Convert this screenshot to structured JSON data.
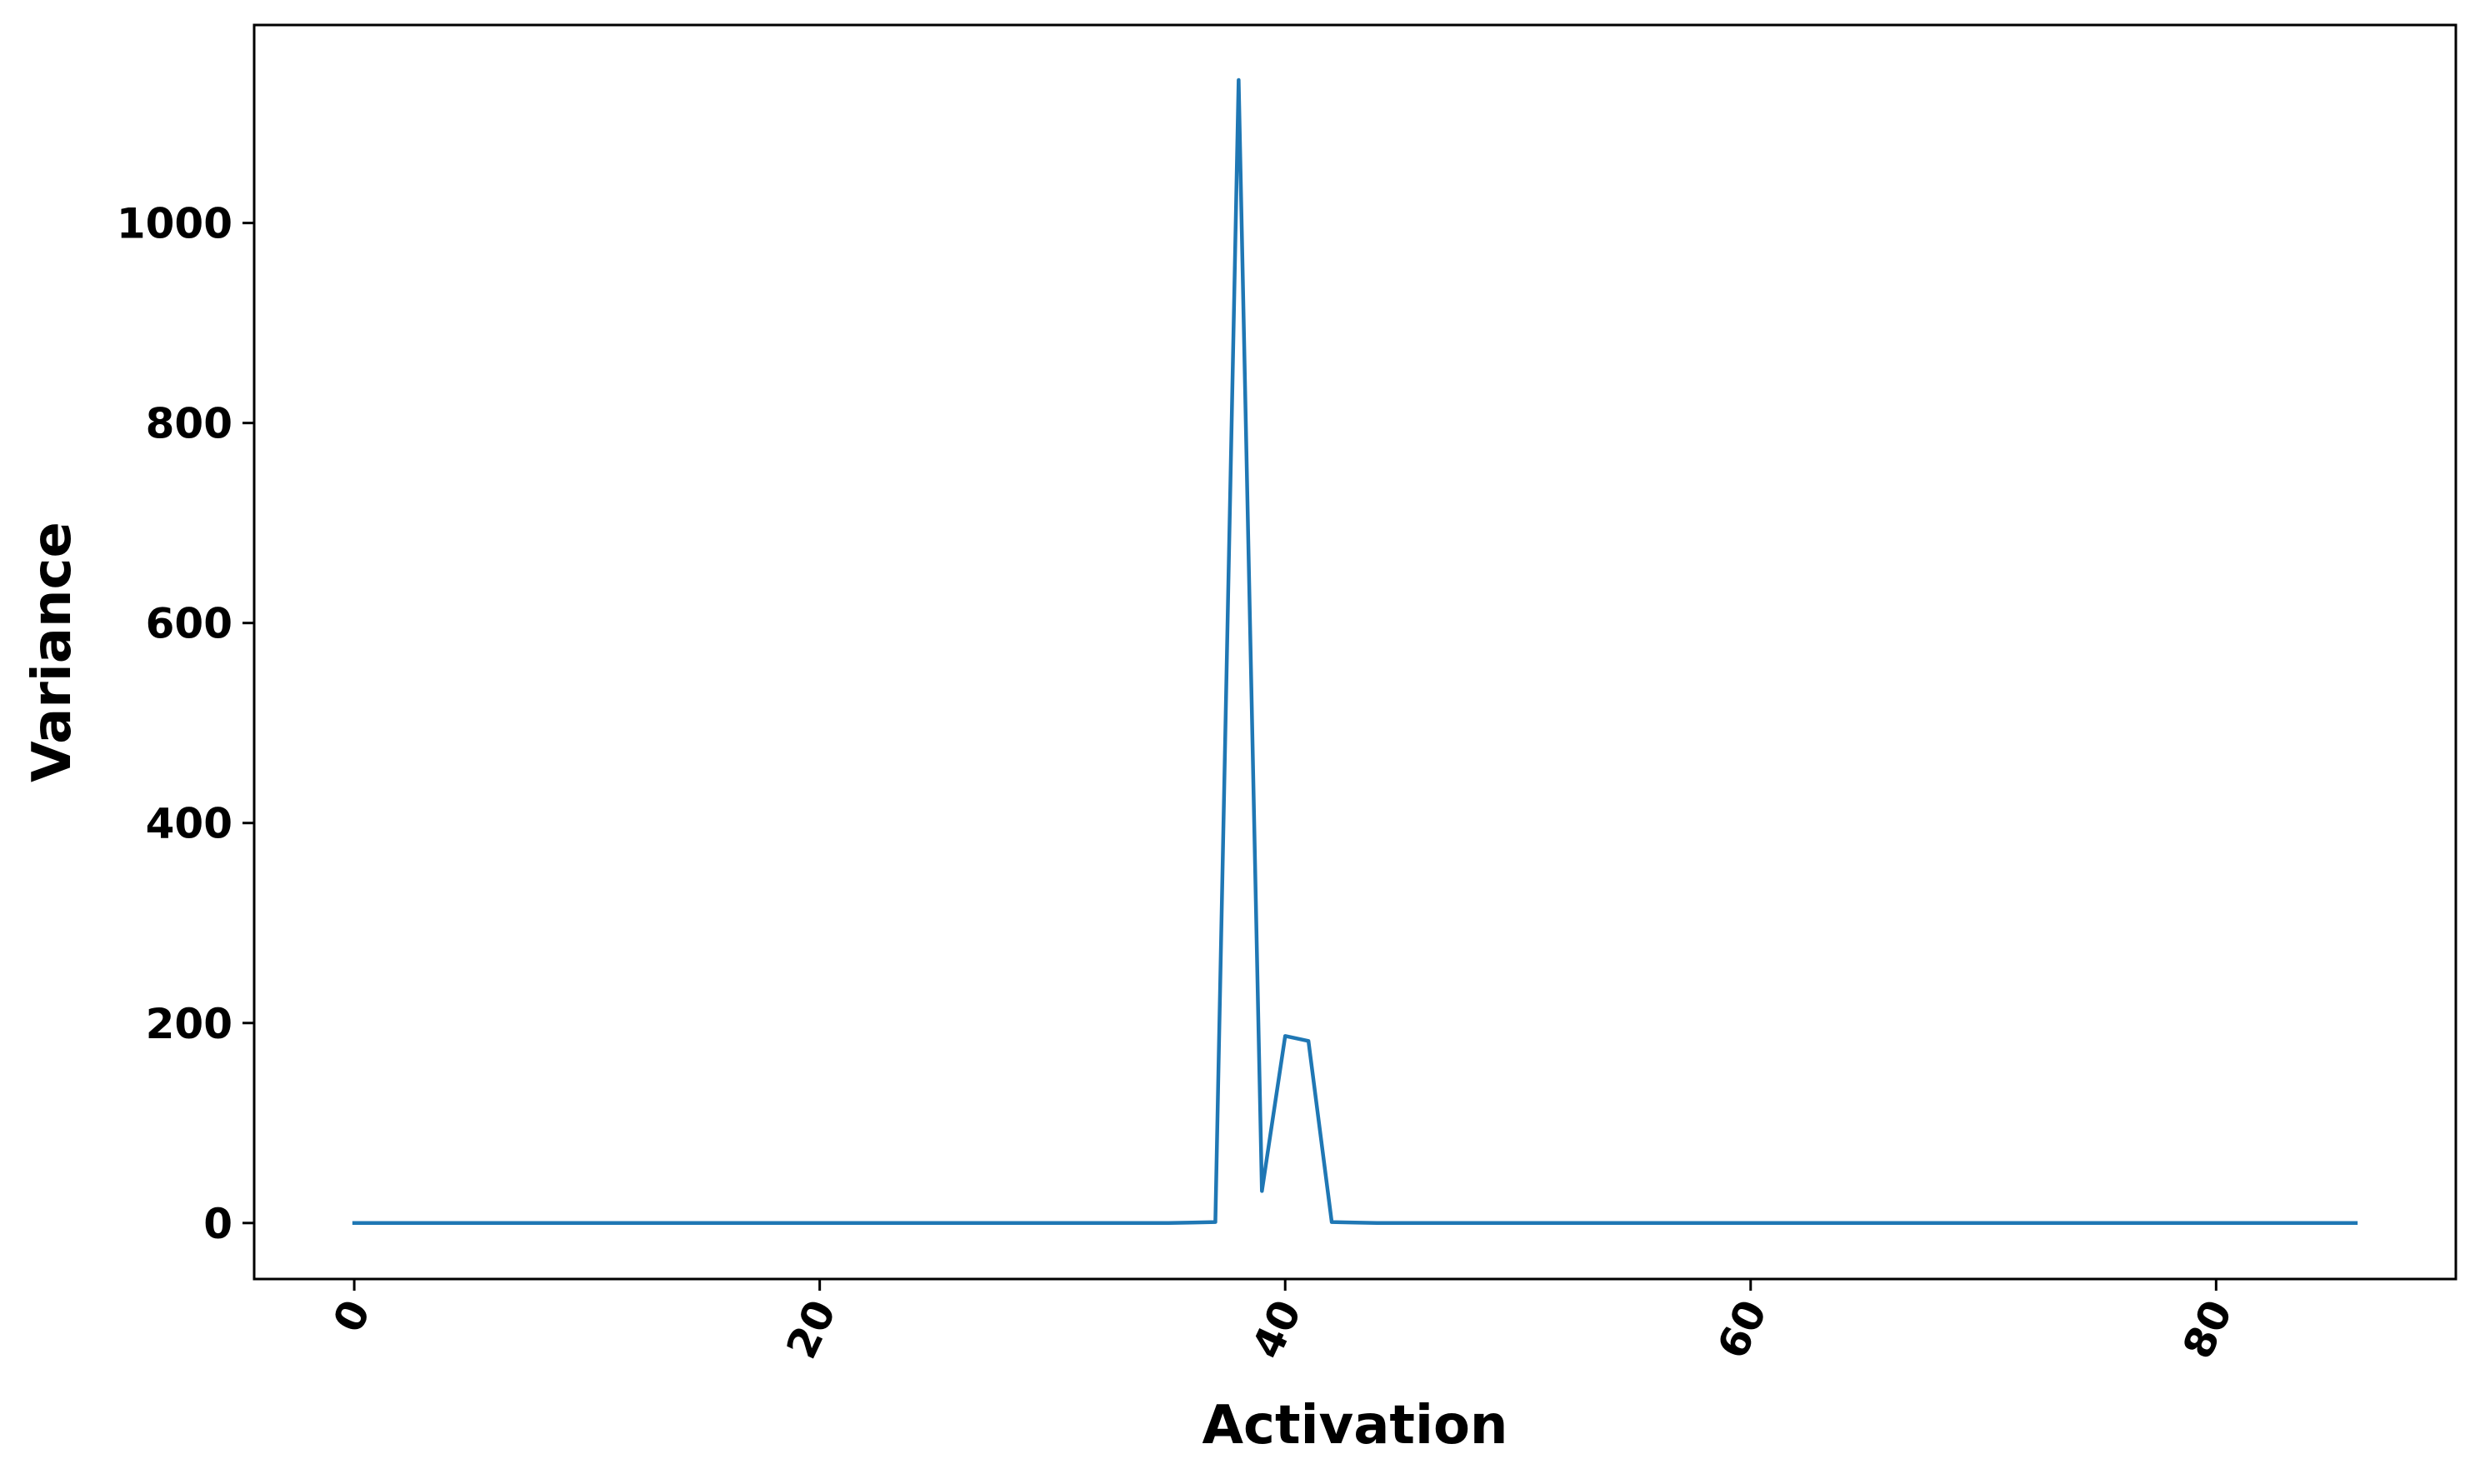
{
  "chart_data": {
    "type": "line",
    "title": "",
    "xlabel": "Activation",
    "ylabel": "Variance",
    "xlim": [
      -4.3,
      90.3
    ],
    "ylim": [
      -56,
      1198
    ],
    "xticks": [
      0,
      20,
      40,
      60,
      80
    ],
    "yticks": [
      0,
      200,
      400,
      600,
      800,
      1000
    ],
    "grid": false,
    "legend": "none",
    "series": [
      {
        "color": "#1f77b4",
        "x": [
          0,
          1,
          2,
          3,
          4,
          5,
          6,
          7,
          8,
          9,
          10,
          11,
          12,
          13,
          14,
          15,
          16,
          17,
          18,
          19,
          20,
          21,
          22,
          23,
          24,
          25,
          26,
          27,
          28,
          29,
          30,
          31,
          32,
          33,
          34,
          35,
          36,
          37,
          38,
          39,
          40,
          41,
          42,
          43,
          44,
          45,
          46,
          47,
          48,
          49,
          50,
          51,
          52,
          53,
          54,
          55,
          56,
          57,
          58,
          59,
          60,
          61,
          62,
          63,
          64,
          65,
          66,
          67,
          68,
          69,
          70,
          71,
          72,
          73,
          74,
          75,
          76,
          77,
          78,
          79,
          80,
          81,
          82,
          83,
          84,
          85,
          86
        ],
        "y": [
          0,
          0,
          0,
          0,
          0,
          0,
          0,
          0,
          0,
          0,
          0,
          0,
          0,
          0,
          0,
          0,
          0,
          0,
          0,
          0,
          0,
          0,
          0,
          0,
          0,
          0,
          0,
          0,
          0,
          0,
          0,
          0,
          0,
          0,
          0,
          0,
          0.5,
          1,
          1143,
          32,
          187,
          182,
          1,
          0.5,
          0,
          0,
          0,
          0,
          0,
          0,
          0,
          0,
          0,
          0,
          0,
          0,
          0,
          0,
          0,
          0,
          0,
          0,
          0,
          0,
          0,
          0,
          0,
          0,
          0,
          0,
          0,
          0,
          0,
          0,
          0,
          0,
          0,
          0,
          0,
          0,
          0,
          0,
          0,
          0,
          0,
          0,
          0
        ]
      }
    ]
  }
}
